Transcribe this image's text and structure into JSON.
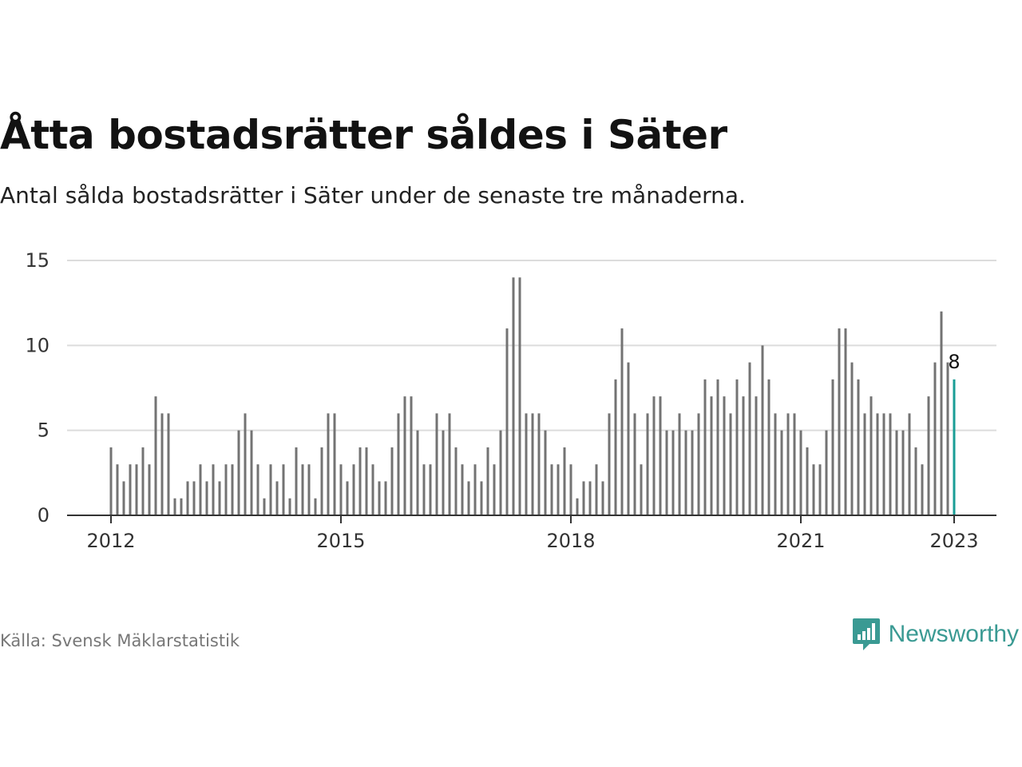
{
  "title": "Åtta bostadsrätter såldes i Säter",
  "subtitle": "Antal sålda bostadsrätter i Säter under de senaste tre månaderna.",
  "source": "Källa: Svensk Mäklarstatistik",
  "brand": {
    "name": "Newsworthy",
    "color": "#3a9a93",
    "logo_icon": "bar-chart-speech-bubble-icon"
  },
  "chart_data": {
    "type": "bar",
    "x_start": "2012-01",
    "x_end": "2023-01",
    "xticks": [
      "2012",
      "2015",
      "2018",
      "2021",
      "2023"
    ],
    "yticks": [
      0,
      5,
      10,
      15
    ],
    "ylim": [
      0,
      15
    ],
    "grid": true,
    "values": [
      4,
      3,
      2,
      3,
      3,
      4,
      3,
      7,
      6,
      6,
      1,
      1,
      2,
      2,
      3,
      2,
      3,
      2,
      3,
      3,
      5,
      6,
      5,
      3,
      1,
      3,
      2,
      3,
      1,
      4,
      3,
      3,
      1,
      4,
      6,
      6,
      3,
      2,
      3,
      4,
      4,
      3,
      2,
      2,
      4,
      6,
      7,
      7,
      5,
      3,
      3,
      6,
      5,
      6,
      4,
      3,
      2,
      3,
      2,
      4,
      3,
      5,
      11,
      14,
      14,
      6,
      6,
      6,
      5,
      3,
      3,
      4,
      3,
      1,
      2,
      2,
      3,
      2,
      6,
      8,
      11,
      9,
      6,
      3,
      6,
      7,
      7,
      5,
      5,
      6,
      5,
      5,
      6,
      8,
      7,
      8,
      7,
      6,
      8,
      7,
      9,
      7,
      10,
      8,
      6,
      5,
      6,
      6,
      5,
      4,
      3,
      3,
      5,
      8,
      11,
      11,
      9,
      8,
      6,
      7,
      6,
      6,
      6,
      5,
      5,
      6,
      4,
      3,
      7,
      9,
      12,
      9,
      8
    ],
    "highlight_label": "8",
    "bar_color": "#737373",
    "highlight_color": "#1a9e96",
    "gridline_color": "#dcdcdc"
  }
}
